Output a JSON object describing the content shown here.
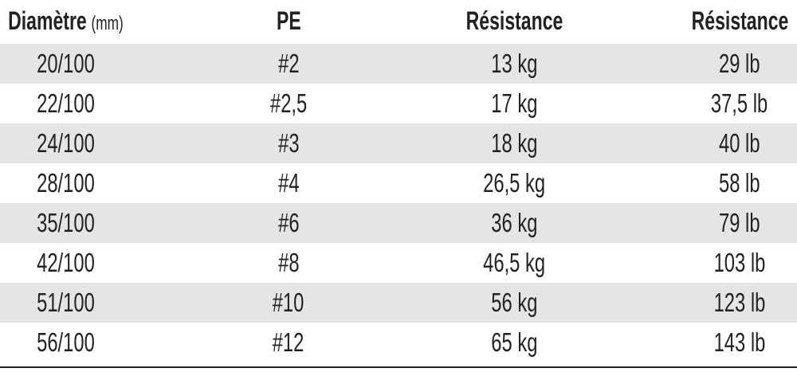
{
  "table": {
    "header": [
      [
        "Diamètre",
        "(mm)"
      ],
      [
        "PE"
      ],
      [
        "Résistance"
      ],
      [
        "Résistance"
      ]
    ],
    "rows": [
      [
        "20/100",
        "#2",
        "13 kg",
        "29 lb"
      ],
      [
        "22/100",
        "#2,5",
        "17 kg",
        "37,5 lb"
      ],
      [
        "24/100",
        "#3",
        "18 kg",
        "40 lb"
      ],
      [
        "28/100",
        "#4",
        "26,5 kg",
        "58 lb"
      ],
      [
        "35/100",
        "#6",
        "36 kg",
        "79 lb"
      ],
      [
        "42/100",
        "#8",
        "46,5 kg",
        "103 lb"
      ],
      [
        "51/100",
        "#10",
        "56 kg",
        "123 lb"
      ],
      [
        "56/100",
        "#12",
        "65 kg",
        "143 lb"
      ]
    ]
  }
}
